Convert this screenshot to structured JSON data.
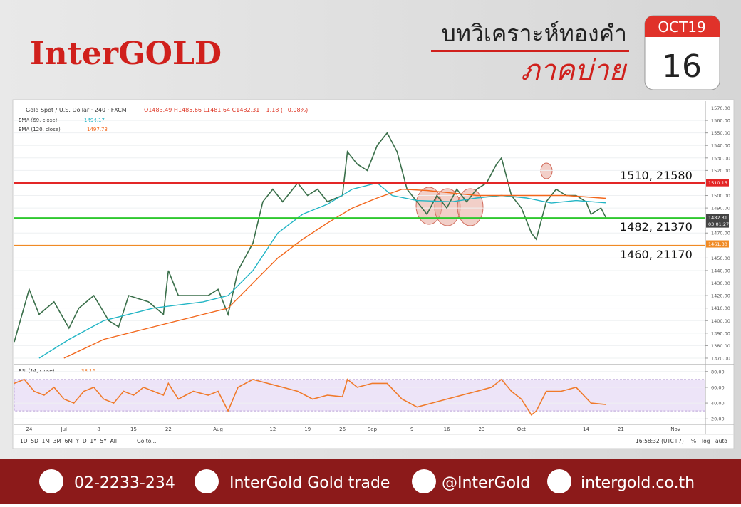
{
  "header": {
    "brand": "InterGOLD",
    "title": "บทวิเคราะห์ทองคำ",
    "subtitle": "ภาคบ่าย",
    "month": "OCT19",
    "day": "16"
  },
  "footer": {
    "phone": "02-2233-234",
    "facebook": "InterGold Gold trade",
    "line": "@InterGold",
    "web": "intergold.co.th"
  },
  "toolbar": {
    "ranges": "1D  5D  1M  3M  6M  YTD  1Y  5Y  All",
    "goto": "Go to...",
    "clock": "16:58:32 (UTC+7)",
    "percent": "%",
    "log": "log",
    "auto": "auto"
  },
  "chart_data": [
    {
      "type": "line",
      "title": "Gold Spot / U.S. Dollar · 240 · FXCM",
      "ohlc": "O1483.49 H1485.66 L1481.64 C1482.31 −1.18 (−0.08%)",
      "xlim": [
        -3,
        136
      ],
      "ylim": [
        1366,
        1572
      ],
      "xticks": [
        {
          "value": 0,
          "label": "24"
        },
        {
          "value": 7,
          "label": "Jul"
        },
        {
          "value": 14,
          "label": "8"
        },
        {
          "value": 21,
          "label": "15"
        },
        {
          "value": 28,
          "label": "22"
        },
        {
          "value": 38,
          "label": "Aug"
        },
        {
          "value": 49,
          "label": "12"
        },
        {
          "value": 56,
          "label": "19"
        },
        {
          "value": 63,
          "label": "26"
        },
        {
          "value": 69,
          "label": "Sep"
        },
        {
          "value": 77,
          "label": "9"
        },
        {
          "value": 84,
          "label": "16"
        },
        {
          "value": 91,
          "label": "23"
        },
        {
          "value": 99,
          "label": "Oct"
        },
        {
          "value": 112,
          "label": "14"
        },
        {
          "value": 119,
          "label": "21"
        },
        {
          "value": 130,
          "label": "Nov"
        }
      ],
      "yticks": [
        {
          "value": 1370,
          "label": "1370.00"
        },
        {
          "value": 1380,
          "label": "1380.00"
        },
        {
          "value": 1390,
          "label": "1390.00"
        },
        {
          "value": 1400,
          "label": "1400.00"
        },
        {
          "value": 1410,
          "label": "1410.00"
        },
        {
          "value": 1420,
          "label": "1420.00"
        },
        {
          "value": 1430,
          "label": "1430.00"
        },
        {
          "value": 1440,
          "label": "1440.00"
        },
        {
          "value": 1450,
          "label": "1450.00"
        },
        {
          "value": 1470,
          "label": "1470.00"
        },
        {
          "value": 1490,
          "label": "1490.00"
        },
        {
          "value": 1500,
          "label": "1500.00"
        },
        {
          "value": 1520,
          "label": "1520.00"
        },
        {
          "value": 1530,
          "label": "1530.00"
        },
        {
          "value": 1540,
          "label": "1540.00"
        },
        {
          "value": 1550,
          "label": "1550.00"
        },
        {
          "value": 1560,
          "label": "1560.00"
        },
        {
          "value": 1570,
          "label": "1570.00"
        }
      ],
      "grid": true,
      "series": [
        {
          "name": "Gold Spot",
          "color": "#3a6f4a",
          "x": [
            -3,
            0,
            2,
            5,
            8,
            10,
            13,
            16,
            18,
            20,
            24,
            27,
            28,
            30,
            33,
            36,
            38,
            40,
            42,
            45,
            47,
            49,
            51,
            54,
            56,
            58,
            60,
            63,
            64,
            66,
            68,
            70,
            72,
            74,
            76,
            78,
            80,
            82,
            84,
            86,
            88,
            90,
            92,
            94,
            95,
            97,
            99,
            101,
            102,
            104,
            106,
            108,
            110,
            112,
            113,
            115,
            116
          ],
          "values": [
            1383,
            1425,
            1405,
            1415,
            1394,
            1410,
            1420,
            1400,
            1395,
            1420,
            1415,
            1405,
            1440,
            1420,
            1420,
            1420,
            1425,
            1405,
            1440,
            1462,
            1495,
            1505,
            1495,
            1510,
            1500,
            1505,
            1495,
            1500,
            1535,
            1525,
            1520,
            1540,
            1550,
            1535,
            1505,
            1495,
            1485,
            1500,
            1490,
            1505,
            1495,
            1505,
            1510,
            1525,
            1530,
            1500,
            1490,
            1470,
            1465,
            1495,
            1505,
            1500,
            1500,
            1495,
            1485,
            1490,
            1482.31
          ]
        },
        {
          "name": "EMA (60, close)",
          "color": "#22b5c5",
          "last": 1494.17,
          "x": [
            2,
            8,
            15,
            25,
            35,
            40,
            45,
            50,
            55,
            60,
            65,
            70,
            73,
            78,
            85,
            90,
            95,
            100,
            105,
            110,
            116
          ],
          "values": [
            1370,
            1385,
            1400,
            1410,
            1415,
            1420,
            1440,
            1470,
            1485,
            1493,
            1505,
            1510,
            1500,
            1496,
            1495,
            1498,
            1500,
            1498,
            1494,
            1496,
            1494.17
          ]
        },
        {
          "name": "EMA (120, close)",
          "color": "#f2661b",
          "last": 1497.73,
          "x": [
            7,
            15,
            25,
            35,
            40,
            45,
            50,
            55,
            60,
            65,
            70,
            75,
            80,
            90,
            100,
            108,
            116
          ],
          "values": [
            1370,
            1385,
            1395,
            1405,
            1410,
            1430,
            1450,
            1465,
            1478,
            1490,
            1498,
            1505,
            1504,
            1500,
            1500,
            1500,
            1497.73
          ]
        }
      ],
      "levels": [
        {
          "value": 1510,
          "label": "1510, 21580",
          "color": "#e32626",
          "badge": 1510.15
        },
        {
          "value": 1482,
          "label": "1482, 21370",
          "color": "#2ec82e",
          "badge": {
            "value": 1482,
            "label": "1482.00"
          }
        },
        {
          "value": 1460,
          "label": "1460, 21170",
          "color": "#f08a24",
          "badge": {
            "value": 1461.3,
            "label": "1461.30"
          }
        }
      ],
      "last_badge": 1482.31,
      "countdown": "03:01:27"
    },
    {
      "type": "line",
      "xlim": [
        -3,
        136
      ],
      "ylim": [
        13,
        87
      ],
      "yticks": [
        {
          "value": 20,
          "label": "20.00"
        },
        {
          "value": 40,
          "label": "40.00"
        },
        {
          "value": 60,
          "label": "60.00"
        },
        {
          "value": 80,
          "label": "80.00"
        }
      ],
      "band": [
        30,
        70
      ],
      "series": [
        {
          "name": "RSI (14, close)",
          "color": "#f07a2a",
          "last": 38.16,
          "x": [
            -3,
            -1,
            1,
            3,
            5,
            7,
            9,
            11,
            13,
            15,
            17,
            19,
            21,
            23,
            25,
            27,
            28,
            30,
            33,
            36,
            38,
            40,
            42,
            45,
            48,
            51,
            54,
            57,
            60,
            63,
            64,
            66,
            69,
            72,
            75,
            78,
            81,
            84,
            87,
            90,
            93,
            95,
            97,
            99,
            101,
            102,
            104,
            107,
            110,
            113,
            116
          ],
          "values": [
            65,
            70,
            55,
            50,
            60,
            45,
            40,
            55,
            60,
            45,
            40,
            55,
            50,
            60,
            55,
            50,
            65,
            45,
            55,
            50,
            55,
            30,
            60,
            70,
            65,
            60,
            55,
            45,
            50,
            48,
            70,
            60,
            65,
            65,
            45,
            35,
            40,
            45,
            50,
            55,
            60,
            70,
            55,
            45,
            25,
            30,
            55,
            55,
            60,
            40,
            38.16
          ]
        }
      ]
    }
  ]
}
